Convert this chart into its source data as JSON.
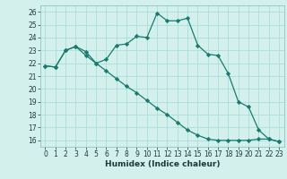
{
  "xlabel": "Humidex (Indice chaleur)",
  "bg_color": "#d4f0ec",
  "line_color": "#1a7a6e",
  "grid_color": "#a8ddd8",
  "line1_x": [
    0,
    1,
    2,
    3,
    4,
    5,
    6,
    7,
    8,
    9,
    10,
    11,
    12,
    13,
    14,
    15,
    16,
    17,
    18,
    19,
    20,
    21,
    22,
    23
  ],
  "line1_y": [
    21.8,
    21.7,
    23.0,
    23.3,
    22.9,
    22.0,
    22.3,
    23.4,
    23.5,
    24.1,
    24.0,
    25.9,
    25.3,
    25.3,
    25.5,
    23.4,
    22.7,
    22.6,
    21.2,
    19.0,
    18.6,
    16.8,
    16.1,
    15.9
  ],
  "line2_x": [
    0,
    1,
    2,
    3,
    4,
    5,
    6,
    7,
    8,
    9,
    10,
    11,
    12,
    13,
    14,
    15,
    16,
    17,
    18,
    19,
    20,
    21,
    22,
    23
  ],
  "line2_y": [
    21.8,
    21.7,
    23.0,
    23.3,
    22.6,
    22.0,
    21.4,
    20.8,
    20.2,
    19.7,
    19.1,
    18.5,
    18.0,
    17.4,
    16.8,
    16.4,
    16.1,
    16.0,
    16.0,
    16.0,
    16.0,
    16.1,
    16.1,
    15.9
  ],
  "ylim": [
    15.5,
    26.5
  ],
  "yticks": [
    16,
    17,
    18,
    19,
    20,
    21,
    22,
    23,
    24,
    25,
    26
  ],
  "xlim": [
    -0.5,
    23.5
  ],
  "xticks": [
    0,
    1,
    2,
    3,
    4,
    5,
    6,
    7,
    8,
    9,
    10,
    11,
    12,
    13,
    14,
    15,
    16,
    17,
    18,
    19,
    20,
    21,
    22,
    23
  ]
}
